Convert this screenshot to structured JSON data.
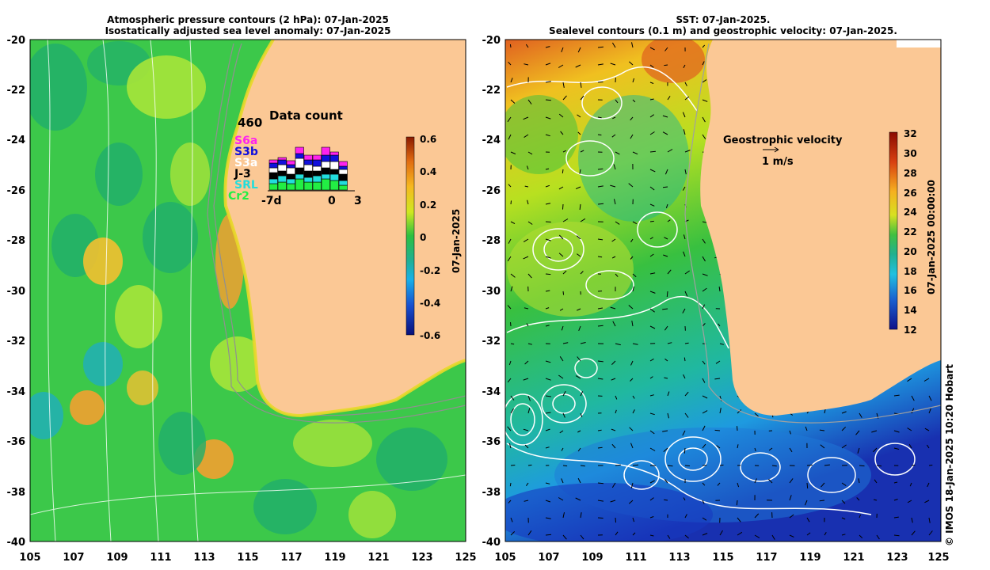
{
  "left_panel": {
    "title_line1": "Atmospheric pressure contours (2 hPa): 07-Jan-2025",
    "title_line2": "Isostatically adjusted sea level anomaly: 07-Jan-2025",
    "y_ticks": [
      "-20",
      "-22",
      "-24",
      "-26",
      "-28",
      "-30",
      "-32",
      "-34",
      "-36",
      "-38",
      "-40"
    ],
    "x_ticks": [
      "105",
      "107",
      "109",
      "111",
      "113",
      "115",
      "117",
      "119",
      "121",
      "123",
      "125"
    ],
    "colorbar": {
      "ticks": [
        "0.6",
        "0.4",
        "0.2",
        "0",
        "-0.2",
        "-0.4",
        "-0.6"
      ],
      "label": "07-Jan-2025"
    },
    "data_count": {
      "title": "Data count",
      "max_label": "460",
      "x_start": "-7d",
      "x_mid": "0",
      "x_end": "3",
      "satellites": [
        {
          "name": "S6a",
          "color": "#ff22ee"
        },
        {
          "name": "S3b",
          "color": "#1010dd"
        },
        {
          "name": "S3a",
          "color": "#ffffff"
        },
        {
          "name": "J-3",
          "color": "#000000"
        },
        {
          "name": "SRL",
          "color": "#22dddd"
        },
        {
          "name": "Cr2",
          "color": "#22ee44"
        }
      ]
    }
  },
  "right_panel": {
    "title_line1": "SST: 07-Jan-2025.",
    "title_line2": "Sealevel contours (0.1 m) and geostrophic velocity: 07-Jan-2025.",
    "y_ticks": [
      "-20",
      "-22",
      "-24",
      "-26",
      "-28",
      "-30",
      "-32",
      "-34",
      "-36",
      "-38",
      "-40"
    ],
    "x_ticks": [
      "105",
      "107",
      "109",
      "111",
      "113",
      "115",
      "117",
      "119",
      "121",
      "123",
      "125"
    ],
    "colorbar": {
      "ticks": [
        "32",
        "30",
        "28",
        "26",
        "24",
        "22",
        "20",
        "18",
        "16",
        "14",
        "12"
      ],
      "label": "07-Jan-2025 00:00:00"
    },
    "velocity_legend": {
      "title": "Geostrophic velocity",
      "scale": "1 m/s"
    }
  },
  "copyright": "© IMOS 18-Jan-2025 10:20 Hobart",
  "colors": {
    "land": "#fbc895",
    "ocean_left": "#3cc84a",
    "ocean_right_warm": "#e8d020",
    "ocean_right_cool": "#1e9ae0"
  }
}
